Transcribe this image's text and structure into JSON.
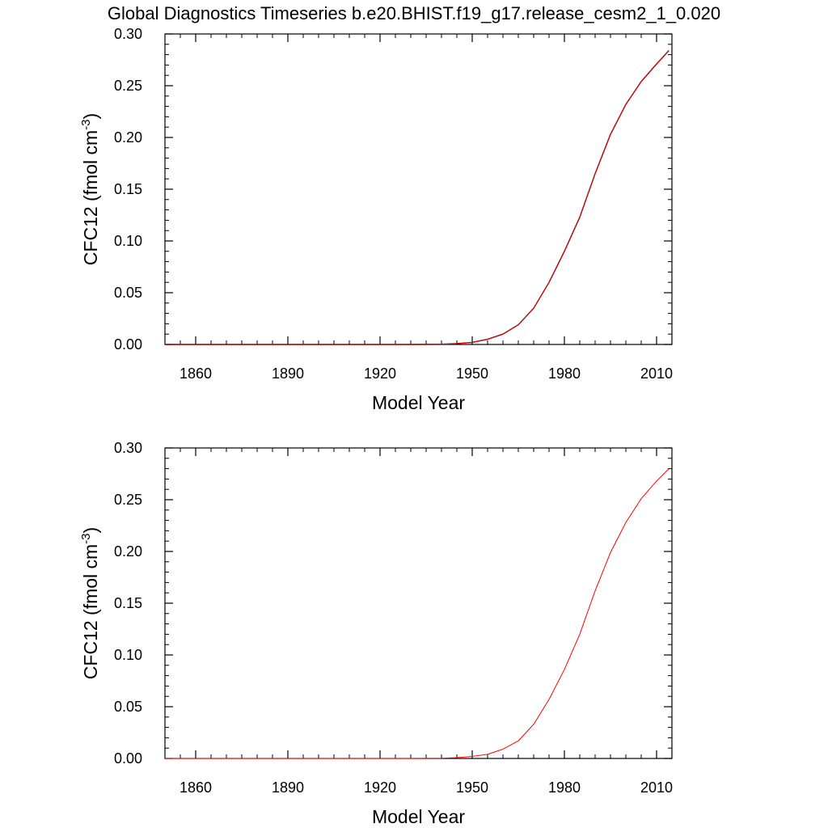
{
  "figure": {
    "title": "Global Diagnostics Timeseries b.e20.BHIST.f19_g17.release_cesm2_1_0.020"
  },
  "chart_data": [
    {
      "type": "line",
      "xlabel": "Model Year",
      "ylabel_main": "CFC12 (fmol cm",
      "ylabel_sup": "-3",
      "ylabel_end": ")",
      "xlim": [
        1850,
        2015
      ],
      "ylim": [
        0,
        0.3
      ],
      "xticks": [
        1860,
        1890,
        1920,
        1950,
        1980,
        2010
      ],
      "yticks": [
        0.0,
        0.05,
        0.1,
        0.15,
        0.2,
        0.25,
        0.3
      ],
      "ytick_labels": [
        "0.00",
        "0.05",
        "0.10",
        "0.15",
        "0.20",
        "0.25",
        "0.30"
      ],
      "grid": false,
      "series": [
        {
          "color": "#000000",
          "x": [
            1850,
            1900,
            1930,
            1940,
            1945,
            1950,
            1955,
            1960,
            1965,
            1970,
            1975,
            1980,
            1985,
            1990,
            1995,
            2000,
            2005,
            2010,
            2014
          ],
          "y": [
            0,
            0,
            0,
            0.0002,
            0.0008,
            0.002,
            0.005,
            0.01,
            0.019,
            0.035,
            0.06,
            0.09,
            0.123,
            0.165,
            0.203,
            0.232,
            0.254,
            0.271,
            0.284
          ]
        },
        {
          "color": "#ff0000",
          "x": [
            1850,
            1900,
            1930,
            1940,
            1945,
            1950,
            1955,
            1960,
            1965,
            1970,
            1975,
            1980,
            1985,
            1990,
            1995,
            2000,
            2005,
            2010,
            2014
          ],
          "y": [
            0,
            0,
            0,
            0.0002,
            0.0008,
            0.002,
            0.005,
            0.01,
            0.019,
            0.035,
            0.06,
            0.09,
            0.123,
            0.165,
            0.203,
            0.232,
            0.254,
            0.271,
            0.284
          ]
        }
      ]
    },
    {
      "type": "line",
      "xlabel": "Model Year",
      "ylabel_main": "CFC12 (fmol cm",
      "ylabel_sup": "-3",
      "ylabel_end": ")",
      "xlim": [
        1850,
        2015
      ],
      "ylim": [
        0,
        0.3
      ],
      "xticks": [
        1860,
        1890,
        1920,
        1950,
        1980,
        2010
      ],
      "yticks": [
        0.0,
        0.05,
        0.1,
        0.15,
        0.2,
        0.25,
        0.3
      ],
      "ytick_labels": [
        "0.00",
        "0.05",
        "0.10",
        "0.15",
        "0.20",
        "0.25",
        "0.30"
      ],
      "grid": false,
      "series": [
        {
          "color": "#ff0000",
          "x": [
            1850,
            1900,
            1930,
            1940,
            1945,
            1950,
            1955,
            1960,
            1965,
            1970,
            1975,
            1980,
            1985,
            1990,
            1995,
            2000,
            2005,
            2010,
            2014
          ],
          "y": [
            0,
            0,
            0,
            0.0002,
            0.0008,
            0.002,
            0.004,
            0.009,
            0.017,
            0.033,
            0.057,
            0.086,
            0.12,
            0.162,
            0.199,
            0.228,
            0.251,
            0.268,
            0.28
          ]
        }
      ]
    }
  ]
}
